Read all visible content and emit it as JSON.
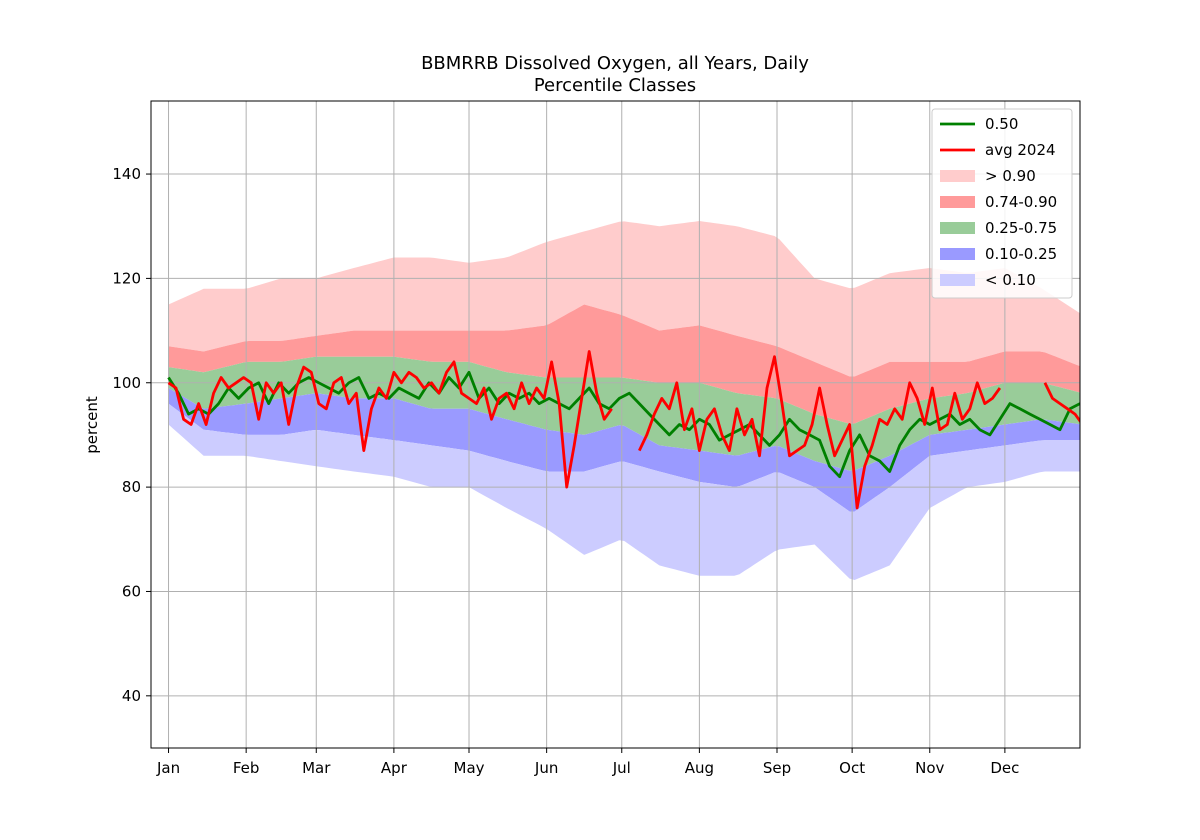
{
  "chart_data": {
    "type": "area",
    "title": "BBMRRB Dissolved Oxygen, all Years, Daily",
    "subtitle": "Percentile Classes",
    "xlabel": "",
    "ylabel": "percent",
    "ylim": [
      30,
      154
    ],
    "xlim_day": [
      -6,
      365
    ],
    "yticks": [
      40,
      60,
      80,
      100,
      120,
      140
    ],
    "xticks": [
      {
        "label": "Jan",
        "day": 1
      },
      {
        "label": "Feb",
        "day": 32
      },
      {
        "label": "Mar",
        "day": 60
      },
      {
        "label": "Apr",
        "day": 91
      },
      {
        "label": "May",
        "day": 121
      },
      {
        "label": "Jun",
        "day": 152
      },
      {
        "label": "Jul",
        "day": 182
      },
      {
        "label": "Aug",
        "day": 213
      },
      {
        "label": "Sep",
        "day": 244
      },
      {
        "label": "Oct",
        "day": 274
      },
      {
        "label": "Nov",
        "day": 305
      },
      {
        "label": "Dec",
        "day": 335
      }
    ],
    "grid": true,
    "legend_position": "top-right",
    "band_anchor_days": [
      1,
      15,
      32,
      46,
      60,
      75,
      91,
      106,
      121,
      136,
      152,
      167,
      182,
      197,
      213,
      228,
      244,
      259,
      274,
      289,
      305,
      320,
      335,
      350,
      366
    ],
    "bands": {
      "p00": [
        92,
        86,
        86,
        85,
        84,
        83,
        82,
        80,
        80,
        76,
        72,
        67,
        70,
        65,
        63,
        63,
        68,
        69,
        62,
        65,
        76,
        80,
        81,
        83,
        83
      ],
      "p10": [
        96,
        91,
        90,
        90,
        91,
        90,
        89,
        88,
        87,
        85,
        83,
        83,
        85,
        83,
        81,
        80,
        83,
        80,
        75,
        80,
        86,
        87,
        88,
        89,
        89
      ],
      "p25": [
        99,
        95,
        96,
        97,
        98,
        97,
        97,
        95,
        95,
        93,
        91,
        90,
        92,
        88,
        87,
        86,
        88,
        85,
        83,
        86,
        90,
        91,
        92,
        93,
        92
      ],
      "p75": [
        103,
        102,
        104,
        104,
        105,
        105,
        105,
        104,
        104,
        102,
        101,
        101,
        101,
        100,
        100,
        98,
        97,
        94,
        92,
        95,
        97,
        98,
        100,
        100,
        98
      ],
      "p90": [
        107,
        106,
        108,
        108,
        109,
        110,
        110,
        110,
        110,
        110,
        111,
        115,
        113,
        110,
        111,
        109,
        107,
        104,
        101,
        104,
        104,
        104,
        106,
        106,
        103
      ],
      "p100": [
        115,
        118,
        118,
        120,
        120,
        122,
        124,
        124,
        123,
        124,
        127,
        129,
        131,
        130,
        131,
        130,
        128,
        120,
        118,
        121,
        122,
        121,
        122,
        118,
        113
      ]
    },
    "series": [
      {
        "name": "0.50",
        "color": "#008000",
        "x_day": [
          1,
          5,
          9,
          13,
          17,
          21,
          25,
          29,
          33,
          37,
          41,
          45,
          49,
          53,
          57,
          61,
          65,
          69,
          73,
          77,
          81,
          85,
          89,
          93,
          97,
          101,
          105,
          109,
          113,
          117,
          121,
          125,
          129,
          133,
          137,
          141,
          145,
          149,
          153,
          157,
          161,
          165,
          169,
          173,
          177,
          181,
          185,
          189,
          193,
          197,
          201,
          205,
          209,
          213,
          217,
          221,
          225,
          229,
          233,
          237,
          241,
          245,
          249,
          253,
          257,
          261,
          265,
          269,
          273,
          277,
          281,
          285,
          289,
          293,
          297,
          301,
          305,
          309,
          313,
          317,
          321,
          325,
          329,
          333,
          337,
          341,
          345,
          349,
          353,
          357,
          361,
          365
        ],
        "values": [
          101,
          98,
          94,
          95,
          94,
          96,
          99,
          97,
          99,
          100,
          96,
          100,
          98,
          100,
          101,
          100,
          99,
          98,
          100,
          101,
          97,
          98,
          97,
          99,
          98,
          97,
          100,
          98,
          101,
          99,
          102,
          97,
          99,
          96,
          98,
          97,
          98,
          96,
          97,
          96,
          95,
          97,
          99,
          96,
          95,
          97,
          98,
          96,
          94,
          92,
          90,
          92,
          91,
          93,
          92,
          89,
          90,
          91,
          92,
          90,
          88,
          90,
          93,
          91,
          90,
          89,
          84,
          82,
          87,
          90,
          86,
          85,
          83,
          88,
          91,
          93,
          92,
          93,
          94,
          92,
          93,
          91,
          90,
          93,
          96,
          95,
          94,
          93,
          92,
          91,
          95,
          96
        ]
      },
      {
        "name": "avg 2024",
        "color": "#ff0000",
        "x_day": [
          1,
          4,
          7,
          10,
          13,
          16,
          19,
          22,
          25,
          28,
          31,
          34,
          37,
          40,
          43,
          46,
          49,
          52,
          55,
          58,
          61,
          64,
          67,
          70,
          73,
          76,
          79,
          82,
          85,
          88,
          91,
          94,
          97,
          100,
          103,
          106,
          109,
          112,
          115,
          118,
          121,
          124,
          127,
          130,
          133,
          136,
          139,
          142,
          145,
          148,
          151,
          154,
          157,
          160,
          163,
          166,
          169,
          172,
          175,
          178
        ],
        "values": [
          100,
          99,
          93,
          92,
          96,
          92,
          98,
          101,
          99,
          100,
          101,
          100,
          93,
          100,
          98,
          100,
          92,
          99,
          103,
          102,
          96,
          95,
          100,
          101,
          96,
          98,
          87,
          95,
          99,
          97,
          102,
          100,
          102,
          101,
          99,
          100,
          98,
          102,
          104,
          98,
          97,
          96,
          99,
          93,
          97,
          98,
          95,
          100,
          96,
          99,
          97,
          104,
          96,
          80,
          88,
          97,
          106,
          98,
          93,
          95
        ],
        "x2_day": [
          189,
          192,
          195,
          198,
          201,
          204,
          207,
          210,
          213,
          216,
          219,
          222,
          225,
          228,
          231,
          234,
          237,
          240,
          243,
          246,
          249,
          252,
          255,
          258,
          261,
          264,
          267,
          270,
          273,
          276,
          279,
          282,
          285,
          288,
          291,
          294,
          297,
          300,
          303,
          306,
          309,
          312,
          315,
          318,
          321,
          324,
          327,
          330,
          333
        ],
        "values2": [
          87,
          90,
          94,
          97,
          95,
          100,
          91,
          95,
          87,
          93,
          95,
          90,
          87,
          95,
          90,
          93,
          86,
          99,
          105,
          96,
          86,
          87,
          88,
          92,
          99,
          92,
          86,
          89,
          92,
          76,
          84,
          88,
          93,
          92,
          95,
          93,
          100,
          97,
          92,
          99,
          91,
          92,
          98,
          93,
          95,
          100,
          96,
          97,
          99
        ],
        "x3_day": [
          351,
          354,
          357,
          360,
          363,
          366
        ],
        "values3": [
          100,
          97,
          96,
          95,
          94,
          92
        ]
      }
    ],
    "legend": [
      {
        "label": "0.50",
        "kind": "line",
        "color": "#008000"
      },
      {
        "label": "avg 2024",
        "kind": "line",
        "color": "#ff0000"
      },
      {
        "label": "> 0.90",
        "kind": "patch",
        "color": "#ffcccc"
      },
      {
        "label": "0.74-0.90",
        "kind": "patch",
        "color": "#ff9a9a"
      },
      {
        "label": "0.25-0.75",
        "kind": "patch",
        "color": "#99cc99"
      },
      {
        "label": "0.10-0.25",
        "kind": "patch",
        "color": "#9a9aff"
      },
      {
        "label": "< 0.10",
        "kind": "patch",
        "color": "#ccccff"
      }
    ]
  }
}
